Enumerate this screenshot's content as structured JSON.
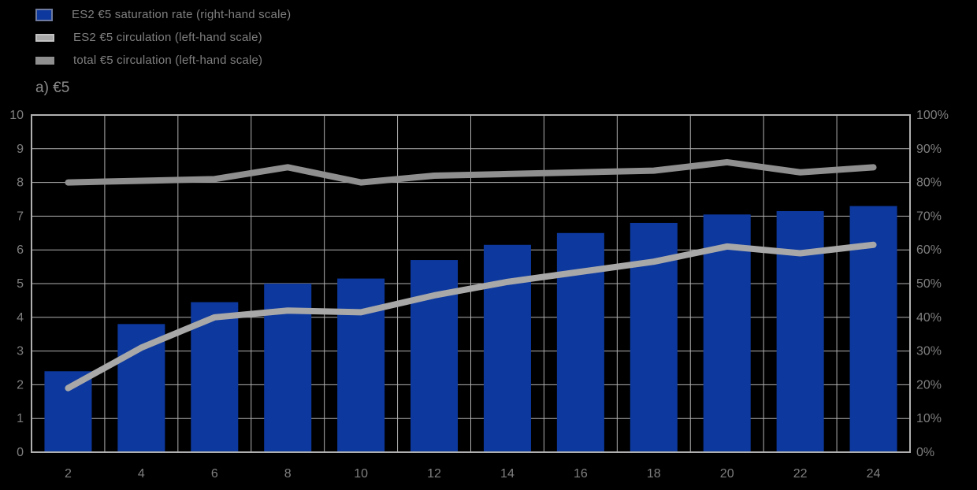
{
  "page": {
    "background": "#000000"
  },
  "panel_title": "a) €5",
  "legend": {
    "items": [
      {
        "label": "ES2 €5 saturation rate (right-hand scale)",
        "swatch": "bar",
        "color": "#0d399e",
        "border": "#6e7a9e"
      },
      {
        "label": "ES2 €5 circulation (left-hand scale)",
        "swatch": "line",
        "color": "#a8a8a8",
        "border": "#c2c2c2"
      },
      {
        "label": "total €5 circulation (left-hand scale)",
        "swatch": "line",
        "color": "#8f8f8f",
        "border": ""
      }
    ]
  },
  "chart_data": {
    "type": "bar",
    "subtype": "combo bar+line, dual axis",
    "title": "a) €5",
    "categories": [
      "2",
      "4",
      "6",
      "8",
      "10",
      "12",
      "14",
      "16",
      "18",
      "20",
      "22",
      "24"
    ],
    "series": [
      {
        "name": "ES2 €5 saturation rate",
        "type": "bar",
        "axis": "right",
        "unit": "%",
        "color": "#0d399e",
        "values": [
          24,
          38,
          44.5,
          50,
          51.5,
          57,
          61.5,
          65,
          68,
          70.5,
          71.5,
          73
        ]
      },
      {
        "name": "ES2 €5 circulation",
        "type": "line",
        "axis": "left",
        "color": "#a8a8a8",
        "values": [
          1.9,
          3.1,
          4.0,
          4.2,
          4.15,
          4.65,
          5.05,
          5.35,
          5.65,
          6.1,
          5.9,
          6.15
        ]
      },
      {
        "name": "total €5 circulation",
        "type": "line",
        "axis": "left",
        "color": "#8f8f8f",
        "values": [
          8.0,
          8.05,
          8.1,
          8.45,
          8.0,
          8.2,
          8.25,
          8.3,
          8.35,
          8.6,
          8.3,
          8.45
        ]
      }
    ],
    "left_axis": {
      "min": 0,
      "max": 10,
      "ticks": [
        "0",
        "1",
        "2",
        "3",
        "4",
        "5",
        "6",
        "7",
        "8",
        "9",
        "10"
      ]
    },
    "right_axis": {
      "min": 0,
      "max": 100,
      "ticks": [
        "0%",
        "10%",
        "20%",
        "30%",
        "40%",
        "50%",
        "60%",
        "70%",
        "80%",
        "90%",
        "100%"
      ]
    },
    "grid": true,
    "legend_position": "top-left",
    "colors": {
      "grid": "#b0b0b0",
      "axis_text": "#7f7f7f",
      "background": "#000000"
    }
  }
}
